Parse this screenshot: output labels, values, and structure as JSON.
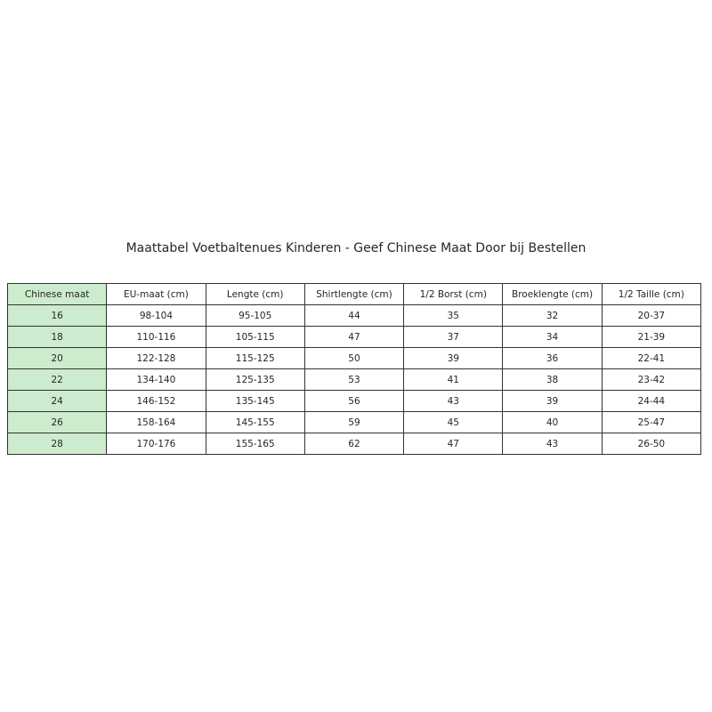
{
  "title": "Maattabel Voetbaltenues Kinderen - Geef Chinese Maat Door bij Bestellen",
  "chart_data": {
    "type": "table",
    "title": "Maattabel Voetbaltenues Kinderen - Geef Chinese Maat Door bij Bestellen",
    "columns": [
      "Chinese maat",
      "EU-maat (cm)",
      "Lengte (cm)",
      "Shirtlengte (cm)",
      "1/2 Borst (cm)",
      "Broeklengte (cm)",
      "1/2 Taille (cm)"
    ],
    "rows": [
      [
        "16",
        "98-104",
        "95-105",
        "44",
        "35",
        "32",
        "20-37"
      ],
      [
        "18",
        "110-116",
        "105-115",
        "47",
        "37",
        "34",
        "21-39"
      ],
      [
        "20",
        "122-128",
        "115-125",
        "50",
        "39",
        "36",
        "22-41"
      ],
      [
        "22",
        "134-140",
        "125-135",
        "53",
        "41",
        "38",
        "23-42"
      ],
      [
        "24",
        "146-152",
        "135-145",
        "56",
        "43",
        "39",
        "24-44"
      ],
      [
        "26",
        "158-164",
        "145-155",
        "59",
        "45",
        "40",
        "25-47"
      ],
      [
        "28",
        "170-176",
        "155-165",
        "62",
        "47",
        "43",
        "26-50"
      ]
    ],
    "layout": {
      "legend": "none",
      "grid": "full-borders",
      "first_column_highlighted": true
    },
    "styles": {
      "first_column_bg": "#cdebcd",
      "border_color": "#333333",
      "text_color": "#262626",
      "background": "#ffffff"
    }
  }
}
